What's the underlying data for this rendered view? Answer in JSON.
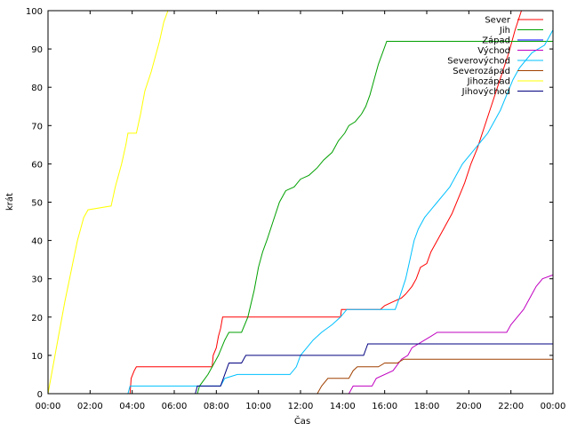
{
  "chart_data": {
    "type": "line",
    "xlabel": "Čas",
    "ylabel": "krát",
    "xlim": [
      0,
      24
    ],
    "ylim": [
      0,
      100
    ],
    "x_tick_labels": [
      "00:00",
      "02:00",
      "04:00",
      "06:00",
      "08:00",
      "10:00",
      "12:00",
      "14:00",
      "16:00",
      "18:00",
      "20:00",
      "22:00",
      "00:00"
    ],
    "y_ticks": [
      0,
      10,
      20,
      30,
      40,
      50,
      60,
      70,
      80,
      90,
      100
    ],
    "grid": false,
    "legend_position": "top-right",
    "series": [
      {
        "name": "Sever",
        "color": "#ff0000",
        "points": [
          [
            3.9,
            0
          ],
          [
            3.95,
            4
          ],
          [
            4.1,
            6
          ],
          [
            4.2,
            7
          ],
          [
            7.8,
            7
          ],
          [
            7.85,
            10
          ],
          [
            8.0,
            12
          ],
          [
            8.1,
            15
          ],
          [
            8.2,
            17
          ],
          [
            8.3,
            20
          ],
          [
            13.9,
            20
          ],
          [
            13.95,
            22
          ],
          [
            15.8,
            22
          ],
          [
            16.0,
            23
          ],
          [
            16.4,
            24
          ],
          [
            16.8,
            25
          ],
          [
            17.0,
            26
          ],
          [
            17.3,
            28
          ],
          [
            17.5,
            30
          ],
          [
            17.7,
            33
          ],
          [
            18.0,
            34
          ],
          [
            18.2,
            37
          ],
          [
            18.5,
            40
          ],
          [
            18.8,
            43
          ],
          [
            19.2,
            47
          ],
          [
            19.5,
            51
          ],
          [
            19.8,
            55
          ],
          [
            20.1,
            60
          ],
          [
            20.4,
            64
          ],
          [
            20.7,
            69
          ],
          [
            21.0,
            74
          ],
          [
            21.3,
            79
          ],
          [
            21.6,
            84
          ],
          [
            21.9,
            89
          ],
          [
            22.2,
            95
          ],
          [
            22.5,
            100
          ]
        ]
      },
      {
        "name": "Jih",
        "color": "#00a000",
        "points": [
          [
            7.1,
            0
          ],
          [
            7.2,
            2
          ],
          [
            7.6,
            5
          ],
          [
            7.9,
            8
          ],
          [
            8.1,
            10
          ],
          [
            8.4,
            14
          ],
          [
            8.6,
            16
          ],
          [
            9.2,
            16
          ],
          [
            9.5,
            20
          ],
          [
            9.8,
            27
          ],
          [
            10.0,
            33
          ],
          [
            10.2,
            37
          ],
          [
            10.4,
            40
          ],
          [
            10.7,
            45
          ],
          [
            11.0,
            50
          ],
          [
            11.3,
            53
          ],
          [
            11.7,
            54
          ],
          [
            12.0,
            56
          ],
          [
            12.4,
            57
          ],
          [
            12.8,
            59
          ],
          [
            13.1,
            61
          ],
          [
            13.5,
            63
          ],
          [
            13.8,
            66
          ],
          [
            14.1,
            68
          ],
          [
            14.3,
            70
          ],
          [
            14.6,
            71
          ],
          [
            14.9,
            73
          ],
          [
            15.1,
            75
          ],
          [
            15.3,
            78
          ],
          [
            15.5,
            82
          ],
          [
            15.7,
            86
          ],
          [
            15.9,
            89
          ],
          [
            16.1,
            92
          ],
          [
            24.0,
            92
          ]
        ]
      },
      {
        "name": "Západ",
        "color": "#0000ff",
        "points": []
      },
      {
        "name": "Východ",
        "color": "#c000c0",
        "points": [
          [
            14.3,
            0
          ],
          [
            14.5,
            2
          ],
          [
            15.4,
            2
          ],
          [
            15.6,
            4
          ],
          [
            16.4,
            6
          ],
          [
            16.8,
            9
          ],
          [
            17.1,
            10
          ],
          [
            17.3,
            12
          ],
          [
            17.6,
            13
          ],
          [
            17.9,
            14
          ],
          [
            18.2,
            15
          ],
          [
            18.5,
            16
          ],
          [
            21.8,
            16
          ],
          [
            22.0,
            18
          ],
          [
            22.3,
            20
          ],
          [
            22.6,
            22
          ],
          [
            22.9,
            25
          ],
          [
            23.2,
            28
          ],
          [
            23.5,
            30
          ],
          [
            24.0,
            31
          ]
        ]
      },
      {
        "name": "Severovýchod",
        "color": "#00c0ff",
        "points": [
          [
            3.8,
            0
          ],
          [
            3.9,
            2
          ],
          [
            8.2,
            2
          ],
          [
            8.4,
            4
          ],
          [
            9.0,
            5
          ],
          [
            11.5,
            5
          ],
          [
            11.8,
            7
          ],
          [
            12.0,
            10
          ],
          [
            12.3,
            12
          ],
          [
            12.6,
            14
          ],
          [
            13.0,
            16
          ],
          [
            13.5,
            18
          ],
          [
            13.9,
            20
          ],
          [
            14.2,
            22
          ],
          [
            16.5,
            22
          ],
          [
            16.7,
            25
          ],
          [
            17.0,
            30
          ],
          [
            17.2,
            35
          ],
          [
            17.4,
            40
          ],
          [
            17.6,
            43
          ],
          [
            17.9,
            46
          ],
          [
            18.2,
            48
          ],
          [
            18.5,
            50
          ],
          [
            18.8,
            52
          ],
          [
            19.1,
            54
          ],
          [
            19.4,
            57
          ],
          [
            19.7,
            60
          ],
          [
            20.0,
            62
          ],
          [
            20.3,
            64
          ],
          [
            20.6,
            66
          ],
          [
            20.9,
            68
          ],
          [
            21.2,
            71
          ],
          [
            21.5,
            74
          ],
          [
            21.8,
            78
          ],
          [
            22.1,
            82
          ],
          [
            22.4,
            85
          ],
          [
            22.7,
            87
          ],
          [
            23.0,
            89
          ],
          [
            23.3,
            90
          ],
          [
            23.6,
            91
          ],
          [
            23.8,
            93
          ],
          [
            24.0,
            95
          ]
        ]
      },
      {
        "name": "Severozápad",
        "color": "#a04000",
        "points": [
          [
            12.8,
            0
          ],
          [
            13.0,
            2
          ],
          [
            13.3,
            4
          ],
          [
            14.3,
            4
          ],
          [
            14.5,
            6
          ],
          [
            14.7,
            7
          ],
          [
            15.7,
            7
          ],
          [
            16.0,
            8
          ],
          [
            16.6,
            8
          ],
          [
            16.9,
            9
          ],
          [
            24.0,
            9
          ]
        ]
      },
      {
        "name": "Jihozápad",
        "color": "#ffff00",
        "points": [
          [
            0,
            0
          ],
          [
            0.2,
            6
          ],
          [
            0.5,
            15
          ],
          [
            0.8,
            24
          ],
          [
            1.1,
            32
          ],
          [
            1.4,
            40
          ],
          [
            1.7,
            46
          ],
          [
            1.9,
            48
          ],
          [
            3.0,
            49
          ],
          [
            3.2,
            54
          ],
          [
            3.5,
            60
          ],
          [
            3.7,
            65
          ],
          [
            3.8,
            68
          ],
          [
            4.2,
            68
          ],
          [
            4.4,
            73
          ],
          [
            4.6,
            79
          ],
          [
            4.9,
            84
          ],
          [
            5.1,
            88
          ],
          [
            5.3,
            92
          ],
          [
            5.5,
            97
          ],
          [
            5.7,
            100
          ]
        ]
      },
      {
        "name": "Jihovýchod",
        "color": "#000080",
        "points": [
          [
            7.0,
            0
          ],
          [
            7.1,
            2
          ],
          [
            8.2,
            2
          ],
          [
            8.4,
            5
          ],
          [
            8.6,
            8
          ],
          [
            9.2,
            8
          ],
          [
            9.4,
            10
          ],
          [
            15.0,
            10
          ],
          [
            15.2,
            13
          ],
          [
            24.0,
            13
          ]
        ]
      }
    ]
  }
}
